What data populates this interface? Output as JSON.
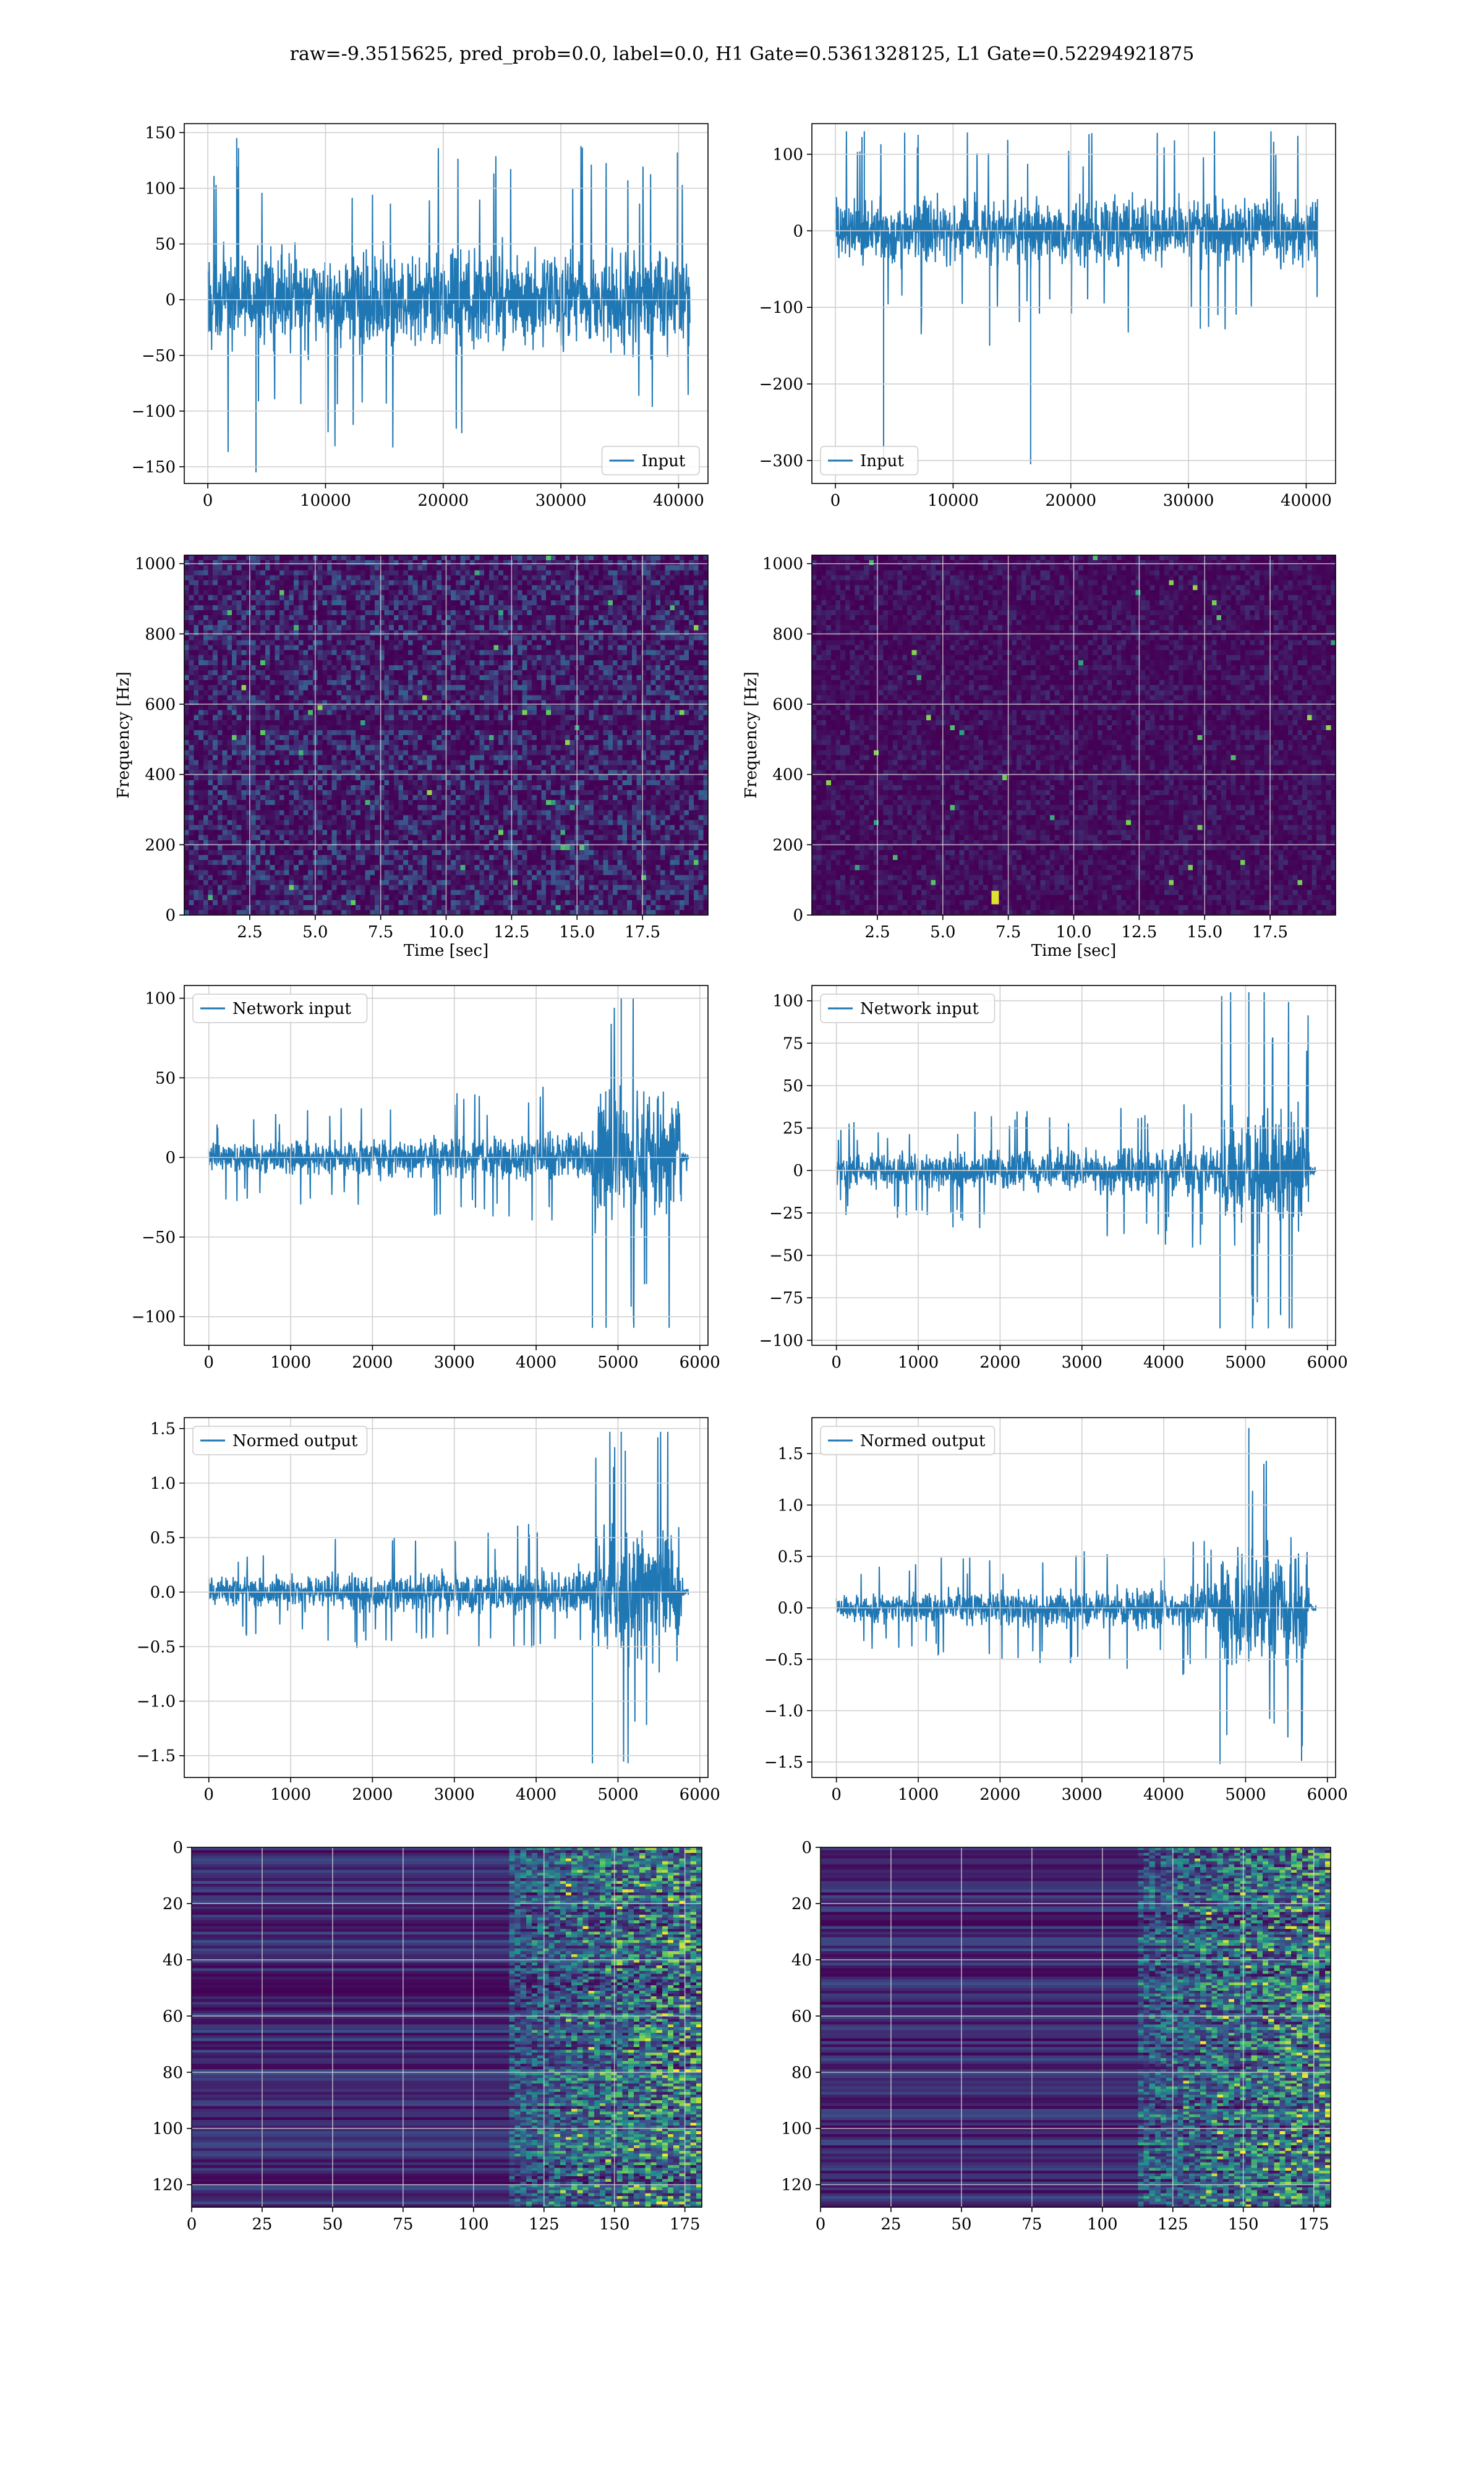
{
  "figure": {
    "title": "raw=-9.3515625, pred_prob=0.0, label=0.0, H1 Gate=0.5361328125, L1 Gate=0.52294921875"
  },
  "colors": {
    "line": "#1f77b4",
    "grid": "#d0d0d0",
    "viridis_low": "#440154",
    "viridis_mid": "#21918c",
    "viridis_high": "#fde725"
  },
  "chart_data": [
    {
      "id": "input-h1",
      "type": "line",
      "row": 0,
      "col": 0,
      "xlim": [
        -2000,
        42500
      ],
      "ylim": [
        -165,
        158
      ],
      "xticks": [
        0,
        10000,
        20000,
        30000,
        40000
      ],
      "yticks": [
        -150,
        -100,
        -50,
        0,
        50,
        100,
        150
      ],
      "xlabel": "",
      "ylabel": "",
      "legend": {
        "label": "Input",
        "loc": "lower right"
      },
      "series": [
        {
          "name": "Input",
          "x_range": [
            0,
            40960
          ],
          "envelope": {
            "core": 60,
            "peak_max": 145,
            "peak_min": -155
          }
        }
      ]
    },
    {
      "id": "input-l1",
      "type": "line",
      "row": 0,
      "col": 1,
      "xlim": [
        -2000,
        42500
      ],
      "ylim": [
        -330,
        140
      ],
      "xticks": [
        0,
        10000,
        20000,
        30000,
        40000
      ],
      "yticks": [
        -300,
        -200,
        -100,
        0,
        100
      ],
      "xlabel": "",
      "ylabel": "",
      "legend": {
        "label": "Input",
        "loc": "lower left"
      },
      "series": [
        {
          "name": "Input",
          "x_range": [
            0,
            40960
          ],
          "envelope": {
            "core": 60,
            "peak_max": 130,
            "peak_min": -305
          }
        }
      ]
    },
    {
      "id": "spectrogram-h1",
      "type": "heatmap",
      "row": 1,
      "col": 0,
      "xlim": [
        0,
        20
      ],
      "ylim": [
        0,
        1024
      ],
      "xticks": [
        2.5,
        5.0,
        7.5,
        10.0,
        12.5,
        15.0,
        17.5
      ],
      "xtick_labels": [
        "2.5",
        "5.0",
        "7.5",
        "10.0",
        "12.5",
        "15.0",
        "17.5"
      ],
      "yticks": [
        0,
        200,
        400,
        600,
        800,
        1000
      ],
      "xlabel": "Time [sec]",
      "ylabel": "Frequency [Hz]",
      "colormap": "viridis"
    },
    {
      "id": "spectrogram-l1",
      "type": "heatmap",
      "row": 1,
      "col": 1,
      "xlim": [
        0,
        20
      ],
      "ylim": [
        0,
        1024
      ],
      "xticks": [
        2.5,
        5.0,
        7.5,
        10.0,
        12.5,
        15.0,
        17.5
      ],
      "xtick_labels": [
        "2.5",
        "5.0",
        "7.5",
        "10.0",
        "12.5",
        "15.0",
        "17.5"
      ],
      "yticks": [
        0,
        200,
        400,
        600,
        800,
        1000
      ],
      "xlabel": "Time [sec]",
      "ylabel": "Frequency [Hz]",
      "colormap": "viridis"
    },
    {
      "id": "network-input-h1",
      "type": "line",
      "row": 2,
      "col": 0,
      "xlim": [
        -300,
        6100
      ],
      "ylim": [
        -118,
        108
      ],
      "xticks": [
        0,
        1000,
        2000,
        3000,
        4000,
        5000,
        6000
      ],
      "yticks": [
        -100,
        -50,
        0,
        50,
        100
      ],
      "xlabel": "",
      "ylabel": "",
      "legend": {
        "label": "Network input",
        "loc": "upper left"
      },
      "series": [
        {
          "name": "Network input",
          "x_range": [
            0,
            5860
          ],
          "envelope": {
            "core": 12,
            "burst_core": 55,
            "peak_max": 100,
            "peak_min": -107
          }
        }
      ]
    },
    {
      "id": "network-input-l1",
      "type": "line",
      "row": 2,
      "col": 1,
      "xlim": [
        -300,
        6100
      ],
      "ylim": [
        -103,
        109
      ],
      "xticks": [
        0,
        1000,
        2000,
        3000,
        4000,
        5000,
        6000
      ],
      "yticks": [
        -100,
        -75,
        -50,
        -25,
        0,
        25,
        50,
        75,
        100
      ],
      "xlabel": "",
      "ylabel": "",
      "legend": {
        "label": "Network input",
        "loc": "upper left"
      },
      "series": [
        {
          "name": "Network input",
          "x_range": [
            0,
            5860
          ],
          "envelope": {
            "core": 12,
            "burst_core": 50,
            "peak_max": 105,
            "peak_min": -93
          }
        }
      ]
    },
    {
      "id": "normed-output-h1",
      "type": "line",
      "row": 3,
      "col": 0,
      "xlim": [
        -300,
        6100
      ],
      "ylim": [
        -1.7,
        1.6
      ],
      "xticks": [
        0,
        1000,
        2000,
        3000,
        4000,
        5000,
        6000
      ],
      "yticks": [
        -1.5,
        -1.0,
        -0.5,
        0.0,
        0.5,
        1.0,
        1.5
      ],
      "ytick_labels": [
        "−1.5",
        "−1.0",
        "−0.5",
        "0.0",
        "0.5",
        "1.0",
        "1.5"
      ],
      "xlabel": "",
      "ylabel": "",
      "legend": {
        "label": "Normed output",
        "loc": "upper left"
      },
      "series": [
        {
          "name": "Normed output",
          "x_range": [
            0,
            5860
          ],
          "envelope": {
            "core": 0.18,
            "burst_core": 0.8,
            "peak_max": 1.47,
            "peak_min": -1.57
          }
        }
      ]
    },
    {
      "id": "normed-output-l1",
      "type": "line",
      "row": 3,
      "col": 1,
      "xlim": [
        -300,
        6100
      ],
      "ylim": [
        -1.65,
        1.85
      ],
      "xticks": [
        0,
        1000,
        2000,
        3000,
        4000,
        5000,
        6000
      ],
      "yticks": [
        -1.5,
        -1.0,
        -0.5,
        0.0,
        0.5,
        1.0,
        1.5
      ],
      "ytick_labels": [
        "−1.5",
        "−1.0",
        "−0.5",
        "0.0",
        "0.5",
        "1.0",
        "1.5"
      ],
      "xlabel": "",
      "ylabel": "",
      "legend": {
        "label": "Normed output",
        "loc": "upper left"
      },
      "series": [
        {
          "name": "Normed output",
          "x_range": [
            0,
            5860
          ],
          "envelope": {
            "core": 0.18,
            "burst_core": 0.75,
            "peak_max": 1.75,
            "peak_min": -1.52
          }
        }
      ]
    },
    {
      "id": "feature-map-h1",
      "type": "heatmap",
      "row": 4,
      "col": 0,
      "xlim": [
        0,
        181
      ],
      "ylim": [
        128,
        0
      ],
      "xticks": [
        0,
        25,
        50,
        75,
        100,
        125,
        150,
        175
      ],
      "yticks": [
        0,
        20,
        40,
        60,
        80,
        100,
        120
      ],
      "xlabel": "",
      "ylabel": "",
      "colormap": "viridis"
    },
    {
      "id": "feature-map-l1",
      "type": "heatmap",
      "row": 4,
      "col": 1,
      "xlim": [
        0,
        181
      ],
      "ylim": [
        128,
        0
      ],
      "xticks": [
        0,
        25,
        50,
        75,
        100,
        125,
        150,
        175
      ],
      "yticks": [
        0,
        20,
        40,
        60,
        80,
        100,
        120
      ],
      "xlabel": "",
      "ylabel": "",
      "colormap": "viridis"
    }
  ]
}
